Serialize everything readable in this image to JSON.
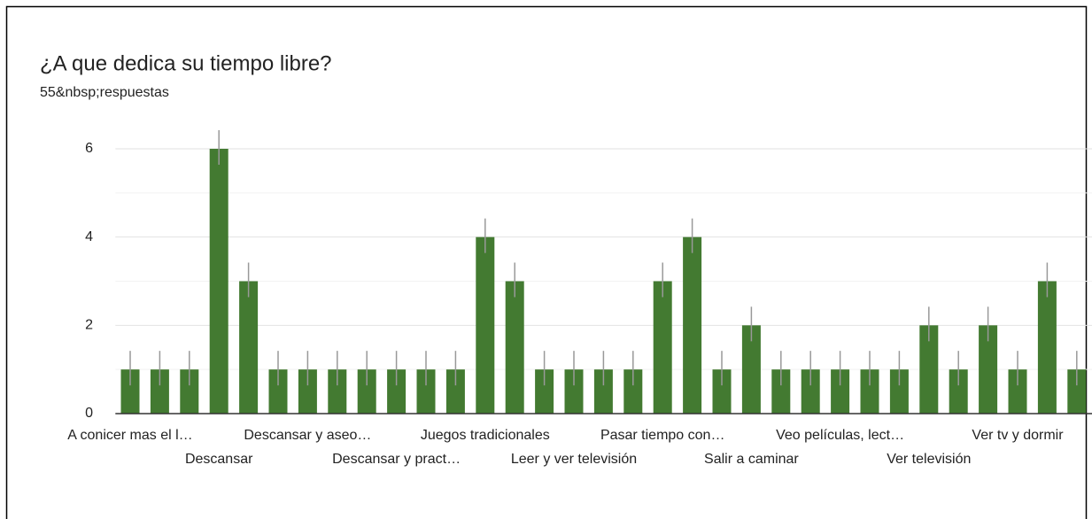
{
  "chart_data": {
    "type": "bar",
    "title": "¿A que dedica su tiempo libre?",
    "subtitle": "55&nbsp;respuestas",
    "categories": [
      "A conicer mas el l…",
      null,
      null,
      "Descansar",
      null,
      null,
      "Descansar y aseo…",
      null,
      null,
      "Descansar y pract…",
      null,
      null,
      "Juegos tradicionales",
      null,
      null,
      "Leer y ver televisión",
      null,
      null,
      "Pasar tiempo con…",
      null,
      null,
      "Salir a caminar",
      null,
      null,
      "Veo películas, lect…",
      null,
      null,
      "Ver televisión",
      null,
      null,
      "Ver tv y dormir",
      null,
      null
    ],
    "values": [
      1,
      1,
      1,
      6,
      3,
      1,
      1,
      1,
      1,
      1,
      1,
      1,
      4,
      3,
      1,
      1,
      1,
      1,
      3,
      4,
      1,
      2,
      1,
      1,
      1,
      1,
      1,
      2,
      1,
      2,
      1,
      3,
      1
    ],
    "color": "#437a31",
    "ylim": [
      0,
      6
    ],
    "yticks": [
      0,
      2,
      4,
      6
    ],
    "grid": true
  }
}
